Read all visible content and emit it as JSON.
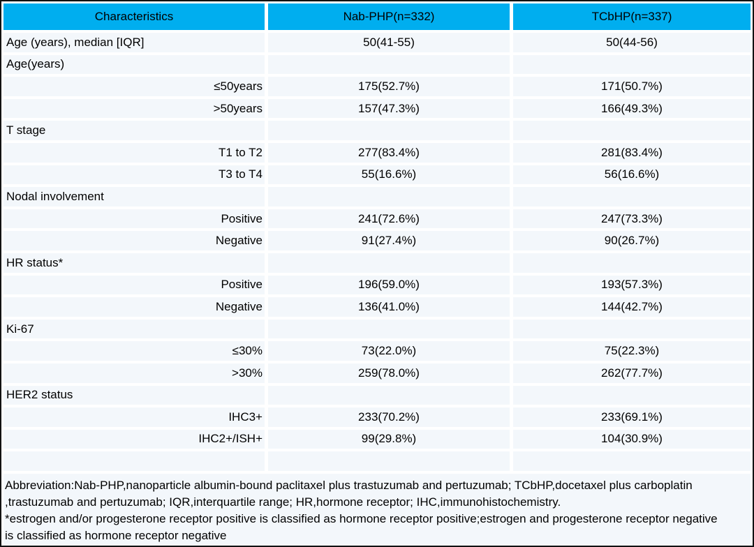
{
  "colors": {
    "header_bg": "#00aeef",
    "row_bg": "#f3f7fb",
    "border": "#111111",
    "text": "#000000"
  },
  "table": {
    "columns": [
      "Characteristics",
      "Nab-PHP(n=332)",
      "TCbHP(n=337)"
    ],
    "rows": [
      {
        "label": "Age (years), median [IQR]",
        "sub": false,
        "nab_php": "50(41-55)",
        "tcbhp": "50(44-56)"
      },
      {
        "label": "Age(years)",
        "sub": false,
        "nab_php": "",
        "tcbhp": ""
      },
      {
        "label": "≤50years",
        "sub": true,
        "nab_php": "175(52.7%)",
        "tcbhp": "171(50.7%)"
      },
      {
        "label": ">50years",
        "sub": true,
        "nab_php": "157(47.3%)",
        "tcbhp": "166(49.3%)"
      },
      {
        "label": "T stage",
        "sub": false,
        "nab_php": "",
        "tcbhp": ""
      },
      {
        "label": "T1 to T2",
        "sub": true,
        "nab_php": "277(83.4%)",
        "tcbhp": "281(83.4%)"
      },
      {
        "label": "T3 to T4",
        "sub": true,
        "nab_php": "55(16.6%)",
        "tcbhp": "56(16.6%)"
      },
      {
        "label": "Nodal involvement",
        "sub": false,
        "nab_php": "",
        "tcbhp": ""
      },
      {
        "label": "Positive",
        "sub": true,
        "nab_php": "241(72.6%)",
        "tcbhp": "247(73.3%)"
      },
      {
        "label": "Negative",
        "sub": true,
        "nab_php": "91(27.4%)",
        "tcbhp": "90(26.7%)"
      },
      {
        "label": "HR status*",
        "sub": false,
        "nab_php": "",
        "tcbhp": ""
      },
      {
        "label": "Positive",
        "sub": true,
        "nab_php": "196(59.0%)",
        "tcbhp": "193(57.3%)"
      },
      {
        "label": "Negative",
        "sub": true,
        "nab_php": "136(41.0%)",
        "tcbhp": "144(42.7%)"
      },
      {
        "label": "Ki-67",
        "sub": false,
        "nab_php": "",
        "tcbhp": ""
      },
      {
        "label": "≤30%",
        "sub": true,
        "nab_php": "73(22.0%)",
        "tcbhp": "75(22.3%)"
      },
      {
        "label": ">30%",
        "sub": true,
        "nab_php": "259(78.0%)",
        "tcbhp": "262(77.7%)"
      },
      {
        "label": "HER2 status",
        "sub": false,
        "nab_php": "",
        "tcbhp": ""
      },
      {
        "label": "IHC3+",
        "sub": true,
        "nab_php": "233(70.2%)",
        "tcbhp": "233(69.1%)"
      },
      {
        "label": "IHC2+/ISH+",
        "sub": true,
        "nab_php": "99(29.8%)",
        "tcbhp": "104(30.9%)"
      },
      {
        "label": "",
        "sub": false,
        "nab_php": "",
        "tcbhp": ""
      }
    ]
  },
  "footnotes": {
    "lines": [
      "Abbreviation:Nab-PHP,nanoparticle albumin-bound paclitaxel plus trastuzumab and pertuzumab; TCbHP,docetaxel plus carboplatin",
      ",trastuzumab and pertuzumab; IQR,interquartile range; HR,hormone receptor; IHC,immunohistochemistry.",
      "*estrogen and/or progesterone receptor positive is classified as hormone receptor positive;estrogen and progesterone receptor negative",
      "is classified as hormone receptor negative"
    ]
  }
}
